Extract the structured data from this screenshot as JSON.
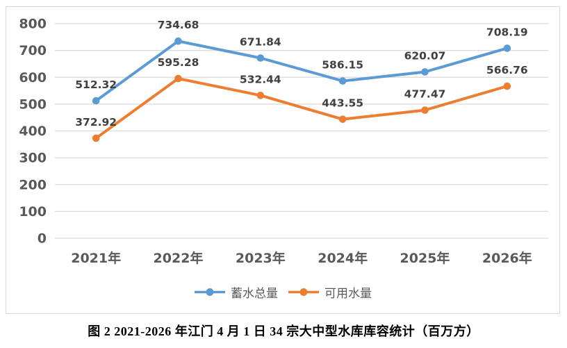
{
  "caption": "图 2 2021-2026 年江门 4 月 1 日 34 宗大中型水库库容统计（百万方）",
  "colors": {
    "grid": "#d9d9d9",
    "frame_border": "#d9d9d9",
    "axis_text": "#595959",
    "data_label_text": "#404040",
    "background": "#ffffff"
  },
  "chart_data": {
    "type": "line",
    "title": "",
    "xlabel": "",
    "ylabel": "",
    "categories": [
      "2021年",
      "2022年",
      "2023年",
      "2024年",
      "2025年",
      "2026年"
    ],
    "series": [
      {
        "name": "蓄水总量",
        "color": "#5B9BD5",
        "values": [
          512.32,
          734.68,
          671.84,
          586.15,
          620.07,
          708.19
        ]
      },
      {
        "name": "可用水量",
        "color": "#ED7D31",
        "values": [
          372.92,
          595.28,
          532.44,
          443.55,
          477.47,
          566.76
        ]
      }
    ],
    "ylim": [
      0,
      800
    ],
    "ytick_step": 100,
    "yticks": [
      0,
      100,
      200,
      300,
      400,
      500,
      600,
      700,
      800
    ],
    "grid": "horizontal",
    "legend_position": "bottom",
    "data_labels": true,
    "marker": "circle"
  }
}
